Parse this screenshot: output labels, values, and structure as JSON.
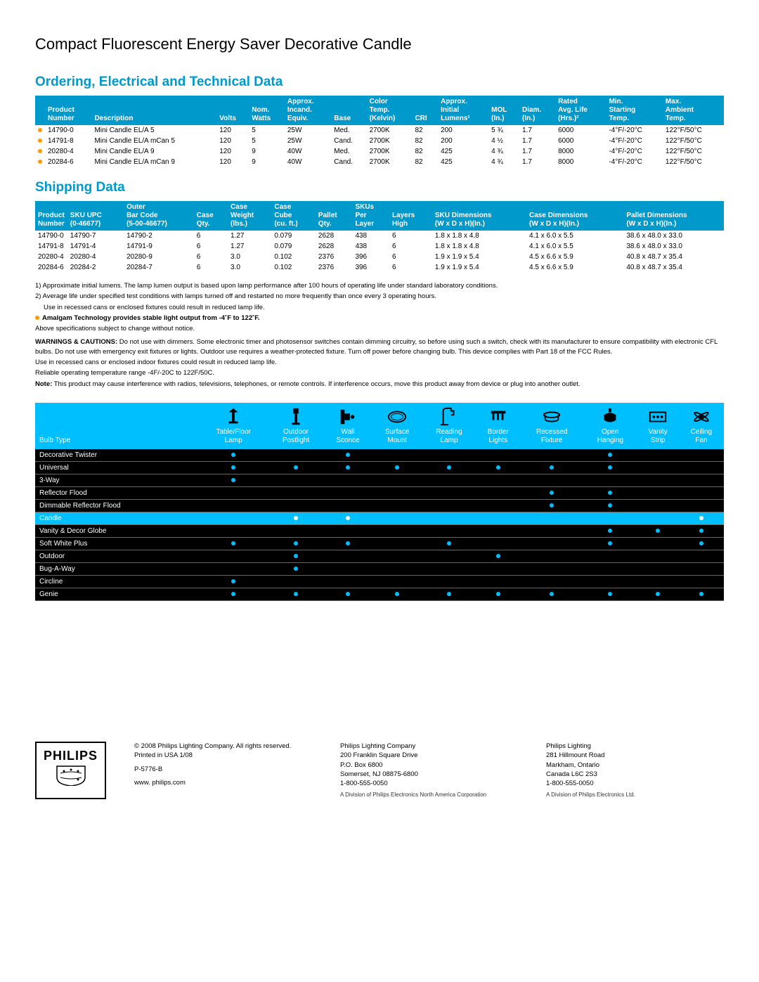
{
  "title": "Compact Fluorescent Energy Saver Decorative Candle",
  "ordering": {
    "heading": "Ordering, Electrical and Technical Data",
    "columns": [
      "",
      "Product Number",
      "Description",
      "Volts",
      "Nom. Watts",
      "Approx. Incand. Equiv.",
      "Base",
      "Color Temp. (Kelvin)",
      "CRI",
      "Approx. Initial Lumens¹",
      "MOL (In.)",
      "Diam. (In.)",
      "Rated Avg. Life (Hrs.)²",
      "Min. Starting Temp.",
      "Max. Ambient Temp."
    ],
    "rows": [
      [
        "•",
        "14790-0",
        "Mini Candle EL/A 5",
        "120",
        "5",
        "25W",
        "Med.",
        "2700K",
        "82",
        "200",
        "5 ¾",
        "1.7",
        "6000",
        "-4°F/-20°C",
        "122°F/50°C"
      ],
      [
        "•",
        "14791-8",
        "Mini Candle EL/A mCan 5",
        "120",
        "5",
        "25W",
        "Cand.",
        "2700K",
        "82",
        "200",
        "4 ½",
        "1.7",
        "6000",
        "-4°F/-20°C",
        "122°F/50°C"
      ],
      [
        "•",
        "20280-4",
        "Mini Candle EL/A 9",
        "120",
        "9",
        "40W",
        "Med.",
        "2700K",
        "82",
        "425",
        "4 ¾",
        "1.7",
        "8000",
        "-4°F/-20°C",
        "122°F/50°C"
      ],
      [
        "•",
        "20284-6",
        "Mini Candle EL/A mCan 9",
        "120",
        "9",
        "40W",
        "Cand.",
        "2700K",
        "82",
        "425",
        "4 ¾",
        "1.7",
        "8000",
        "-4°F/-20°C",
        "122°F/50°C"
      ]
    ]
  },
  "shipping": {
    "heading": "Shipping Data",
    "columns": [
      "Product Number",
      "SKU UPC (0-46677)",
      "Outer Bar Code (5-00-46677)",
      "Case Qty.",
      "Case Weight (lbs.)",
      "Case Cube (cu. ft.)",
      "Pallet Qty.",
      "SKUs Per Layer",
      "Layers High",
      "SKU Dimensions (W x D x H)(In.)",
      "Case Dimensions (W x D x H)(In.)",
      "Pallet Dimensions (W x D x H)(In.)"
    ],
    "rows": [
      [
        "14790-0",
        "14790-7",
        "14790-2",
        "6",
        "1.27",
        "0.079",
        "2628",
        "438",
        "6",
        "1.8 x 1.8 x 4.8",
        "4.1 x 6.0 x 5.5",
        "38.6 x 48.0 x 33.0"
      ],
      [
        "14791-8",
        "14791-4",
        "14791-9",
        "6",
        "1.27",
        "0.079",
        "2628",
        "438",
        "6",
        "1.8 x 1.8 x 4.8",
        "4.1 x 6.0 x 5.5",
        "38.6 x 48.0 x 33.0"
      ],
      [
        "20280-4",
        "20280-4",
        "20280-9",
        "6",
        "3.0",
        "0.102",
        "2376",
        "396",
        "6",
        "1.9 x 1.9 x 5.4",
        "4.5 x 6.6 x 5.9",
        "40.8 x 48.7 x 35.4"
      ],
      [
        "20284-6",
        "20284-2",
        "20284-7",
        "6",
        "3.0",
        "0.102",
        "2376",
        "396",
        "6",
        "1.9 x 1.9 x 5.4",
        "4.5 x 6.6 x 5.9",
        "40.8 x 48.7 x 35.4"
      ]
    ]
  },
  "notes": {
    "n1": "1) Approximate initial lumens. The lamp lumen output is based upon lamp performance after 100 hours of operating life under standard laboratory conditions.",
    "n2": "2) Average life under specified test conditions with lamps turned off and restarted no more frequently than once every 3 operating hours.",
    "n2b": "Use in recessed cans or enclosed fixtures could result in reduced lamp life.",
    "amalgam": "Amalgam Technology provides stable light output from -4˚F to 122˚F.",
    "change": "Above specifications subject to change without notice.",
    "warn_label": "WARNINGS & CAUTIONS:",
    "warn_text": " Do not use with dimmers. Some electronic timer and photosensor switches contain dimming circuitry, so before using such a switch, check with its manufacturer to ensure compatibility with electronic CFL bulbs. Do not use with emergency exit fixtures or lights. Outdoor use requires a weather-protected fixture. Turn off power before changing bulb. This device complies with Part 18 of the FCC Rules.",
    "recessed": "Use in recessed cans or enclosed indoor fixtures could result in reduced lamp life.",
    "temp": "Reliable operating temperature range -4F/-20C to 122F/50C.",
    "note_label": "Note:",
    "note_text": " This product may cause interference with radios, televisions, telephones, or remote controls. If interference occurs, move this product away from device or plug into another outlet."
  },
  "compat": {
    "cols": [
      "Bulb Type",
      "Table/Floor Lamp",
      "Outdoor Postlight",
      "Wall Sconce",
      "Surface Mount",
      "Reading Lamp",
      "Border Lights",
      "Recessed Fixture",
      "Open Hanging",
      "Vanity Strip",
      "Ceiling Fan"
    ],
    "rows": [
      {
        "name": "Decorative Twister",
        "dots": [
          1,
          0,
          1,
          0,
          0,
          0,
          0,
          1,
          0,
          0
        ],
        "hl": false
      },
      {
        "name": "Universal",
        "dots": [
          1,
          1,
          1,
          1,
          1,
          1,
          1,
          1,
          0,
          0
        ],
        "hl": false
      },
      {
        "name": "3-Way",
        "dots": [
          1,
          0,
          0,
          0,
          0,
          0,
          0,
          0,
          0,
          0
        ],
        "hl": false
      },
      {
        "name": "Reflector Flood",
        "dots": [
          0,
          0,
          0,
          0,
          0,
          0,
          1,
          1,
          0,
          0
        ],
        "hl": false
      },
      {
        "name": "Dimmable Reflector Flood",
        "dots": [
          0,
          0,
          0,
          0,
          0,
          0,
          1,
          1,
          0,
          0
        ],
        "hl": false
      },
      {
        "name": "Candle",
        "dots": [
          0,
          1,
          1,
          0,
          0,
          0,
          0,
          0,
          0,
          1
        ],
        "hl": true
      },
      {
        "name": "Vanity & Decor Globe",
        "dots": [
          0,
          0,
          0,
          0,
          0,
          0,
          0,
          1,
          1,
          1
        ],
        "hl": false
      },
      {
        "name": "Soft White Plus",
        "dots": [
          1,
          1,
          1,
          0,
          1,
          0,
          0,
          1,
          0,
          1
        ],
        "hl": false
      },
      {
        "name": "Outdoor",
        "dots": [
          0,
          1,
          0,
          0,
          0,
          1,
          0,
          0,
          0,
          0
        ],
        "hl": false
      },
      {
        "name": "Bug-A-Way",
        "dots": [
          0,
          1,
          0,
          0,
          0,
          0,
          0,
          0,
          0,
          0
        ],
        "hl": false
      },
      {
        "name": "Circline",
        "dots": [
          1,
          0,
          0,
          0,
          0,
          0,
          0,
          0,
          0,
          0
        ],
        "hl": false
      },
      {
        "name": "Genie",
        "dots": [
          1,
          1,
          1,
          1,
          1,
          1,
          1,
          1,
          1,
          1
        ],
        "hl": false
      }
    ]
  },
  "footer": {
    "brand": "PHILIPS",
    "col1_l1": "© 2008 Philips Lighting Company. All rights reserved.",
    "col1_l2": "Printed in USA 1/08",
    "col1_l3": "P-5776-B",
    "col1_l4": "www. philips.com",
    "col2_l1": "Philips Lighting Company",
    "col2_l2": "200 Franklin Square Drive",
    "col2_l3": "P.O. Box 6800",
    "col2_l4": "Somerset, NJ 08875-6800",
    "col2_l5": "1-800-555-0050",
    "col2_fine": "A Division of Philips Electronics North America Corporation",
    "col3_l1": "Philips Lighting",
    "col3_l2": "281 Hillmount Road",
    "col3_l3": "Markham, Ontario",
    "col3_l4": "Canada L6C 2S3",
    "col3_l5": "1-800-555-0050",
    "col3_fine": "A Division of Philips Electronics Ltd."
  }
}
